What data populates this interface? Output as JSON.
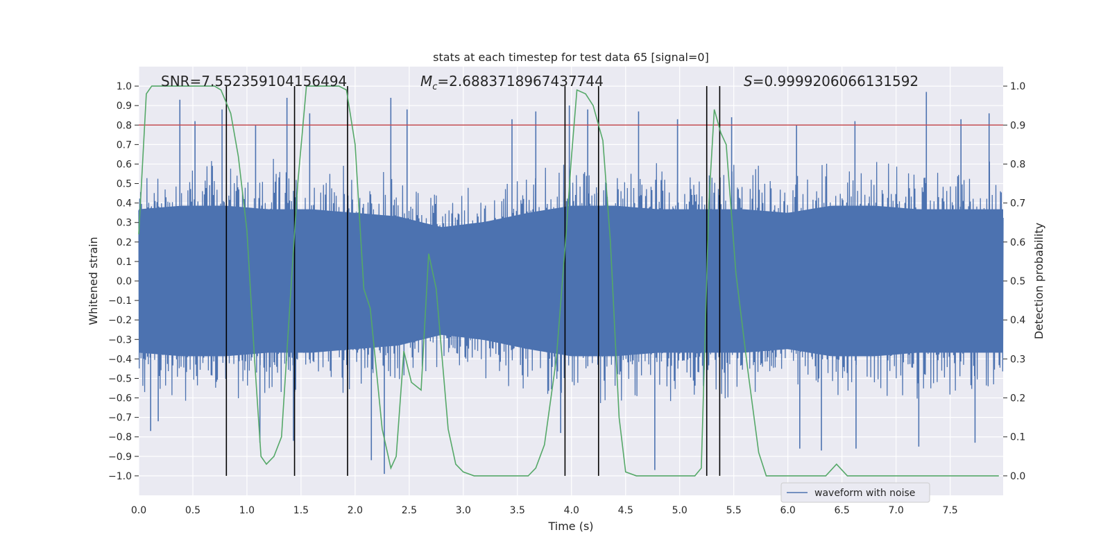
{
  "chart_data": {
    "type": "line",
    "title": "stats at each timestep for test data 65 [signal=0]",
    "xlabel": "Time (s)",
    "ylabel_left": "Whitened strain",
    "ylabel_right": "Detection probability",
    "xlim": [
      0,
      7.99
    ],
    "ylim_left": [
      -1.1,
      1.1
    ],
    "ylim_right": [
      -0.05,
      1.05
    ],
    "x_ticks": [
      "0.0",
      "0.5",
      "1.0",
      "1.5",
      "2.0",
      "2.5",
      "3.0",
      "3.5",
      "4.0",
      "4.5",
      "5.0",
      "5.5",
      "6.0",
      "6.5",
      "7.0",
      "7.5"
    ],
    "y_ticks_left": [
      "1.0",
      "0.9",
      "0.8",
      "0.7",
      "0.6",
      "0.5",
      "0.4",
      "0.3",
      "0.2",
      "0.1",
      "0.0",
      "−0.1",
      "−0.2",
      "−0.3",
      "−0.4",
      "−0.5",
      "−0.6",
      "−0.7",
      "−0.8",
      "−0.9",
      "−1.0"
    ],
    "y_ticks_right": [
      "1.0",
      "0.9",
      "0.8",
      "0.7",
      "0.6",
      "0.5",
      "0.4",
      "0.3",
      "0.2",
      "0.1",
      "0.0"
    ],
    "grid": true,
    "legend": {
      "placement": "lower-right",
      "entries": [
        "waveform with noise"
      ]
    },
    "annotations": {
      "snr": "SNR=7.552359104156494",
      "mc_symbol": "M",
      "mc_sub": "c",
      "mc_value": "=2.6883718967437744",
      "s_symbol": "S",
      "s_value": "=0.9999206066131592"
    },
    "threshold": {
      "value": 0.9,
      "axis": "right",
      "color": "#c44e52"
    },
    "vertical_markers": [
      0.81,
      1.44,
      1.93,
      3.94,
      4.25,
      5.25,
      5.37
    ],
    "vertical_marker_range": [
      -1.0,
      1.0
    ],
    "series": [
      {
        "name": "waveform with noise",
        "axis": "left",
        "color": "#4c72b0",
        "style": "noise-band",
        "envelope": {
          "t": [
            0.0,
            0.4,
            0.8,
            1.2,
            1.6,
            2.0,
            2.4,
            2.8,
            3.2,
            3.6,
            4.0,
            4.4,
            4.8,
            5.2,
            5.6,
            6.0,
            6.4,
            6.8,
            7.2,
            7.6,
            7.99
          ],
          "core": [
            0.4,
            0.42,
            0.42,
            0.4,
            0.4,
            0.38,
            0.36,
            0.3,
            0.33,
            0.38,
            0.42,
            0.42,
            0.4,
            0.4,
            0.4,
            0.38,
            0.42,
            0.42,
            0.4,
            0.4,
            0.4
          ]
        },
        "spikes_up": [
          [
            0.38,
            0.93
          ],
          [
            0.52,
            0.82
          ],
          [
            0.77,
            0.88
          ],
          [
            1.08,
            0.8
          ],
          [
            1.37,
            0.94
          ],
          [
            1.58,
            0.86
          ],
          [
            2.33,
            0.94
          ],
          [
            2.48,
            0.88
          ],
          [
            3.45,
            0.83
          ],
          [
            3.67,
            0.87
          ],
          [
            3.98,
            0.9
          ],
          [
            4.15,
            0.88
          ],
          [
            4.62,
            0.87
          ],
          [
            4.98,
            0.83
          ],
          [
            5.48,
            0.84
          ],
          [
            6.08,
            0.8
          ],
          [
            6.62,
            0.82
          ],
          [
            7.28,
            0.97
          ],
          [
            7.6,
            0.83
          ],
          [
            7.86,
            0.86
          ]
        ],
        "spikes_down": [
          [
            0.11,
            -0.77
          ],
          [
            0.18,
            -0.72
          ],
          [
            1.12,
            -0.83
          ],
          [
            1.43,
            -0.82
          ],
          [
            2.15,
            -0.92
          ],
          [
            2.27,
            -0.99
          ],
          [
            3.9,
            -0.78
          ],
          [
            4.77,
            -0.97
          ],
          [
            6.11,
            -0.86
          ],
          [
            6.31,
            -0.87
          ],
          [
            6.63,
            -0.86
          ],
          [
            7.21,
            -0.85
          ],
          [
            7.73,
            -0.83
          ]
        ]
      },
      {
        "name": "",
        "axis": "right",
        "color": "#55a868",
        "x": [
          0.0,
          0.07,
          0.12,
          0.7,
          0.76,
          0.85,
          0.92,
          1.0,
          1.07,
          1.13,
          1.18,
          1.25,
          1.32,
          1.4,
          1.47,
          1.55,
          1.85,
          1.92,
          2.0,
          2.08,
          2.14,
          2.25,
          2.33,
          2.38,
          2.45,
          2.52,
          2.61,
          2.68,
          2.75,
          2.86,
          2.93,
          3.0,
          3.1,
          3.3,
          3.6,
          3.67,
          3.75,
          3.86,
          3.95,
          4.0,
          4.05,
          4.13,
          4.2,
          4.29,
          4.36,
          4.44,
          4.5,
          4.6,
          4.8,
          5.0,
          5.14,
          5.2,
          5.27,
          5.32,
          5.38,
          5.43,
          5.52,
          5.63,
          5.73,
          5.8,
          6.0,
          6.1,
          6.2,
          6.35,
          6.45,
          6.55,
          6.7,
          7.0,
          7.3,
          7.6,
          7.95
        ],
        "y": [
          0.62,
          0.98,
          1.0,
          1.0,
          0.99,
          0.93,
          0.82,
          0.63,
          0.3,
          0.05,
          0.03,
          0.05,
          0.1,
          0.45,
          0.75,
          1.0,
          1.0,
          0.99,
          0.85,
          0.48,
          0.43,
          0.12,
          0.02,
          0.05,
          0.32,
          0.24,
          0.22,
          0.57,
          0.48,
          0.12,
          0.03,
          0.01,
          0.0,
          0.0,
          0.0,
          0.02,
          0.08,
          0.3,
          0.62,
          0.82,
          0.99,
          0.98,
          0.95,
          0.86,
          0.6,
          0.15,
          0.01,
          0.0,
          0.0,
          0.0,
          0.0,
          0.02,
          0.7,
          0.94,
          0.88,
          0.85,
          0.52,
          0.27,
          0.06,
          0.0,
          0.0,
          0.0,
          0.0,
          0.0,
          0.03,
          0.0,
          0.0,
          0.0,
          0.0,
          0.0,
          0.0
        ]
      }
    ]
  }
}
